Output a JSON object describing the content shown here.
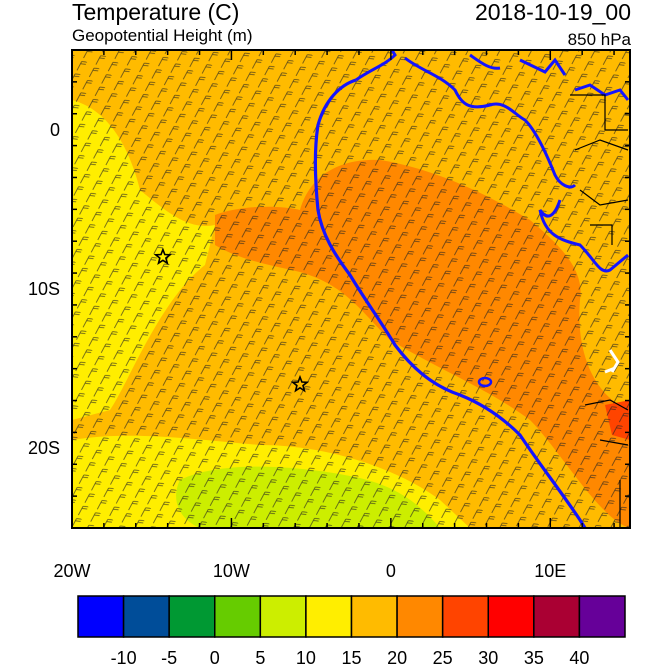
{
  "header": {
    "title": "Temperature (C)",
    "subtitle": "Geopotential Height (m)",
    "datetime": "2018-10-19_00",
    "level": "850 hPa"
  },
  "map": {
    "lon_range": [
      -20,
      15
    ],
    "lat_range": [
      -25,
      5
    ],
    "x_ticks": [
      {
        "lon": -20,
        "label": "20W"
      },
      {
        "lon": -10,
        "label": "10W"
      },
      {
        "lon": 0,
        "label": "0"
      },
      {
        "lon": 10,
        "label": "10E"
      }
    ],
    "y_ticks": [
      {
        "lat": 0,
        "label": "0"
      },
      {
        "lat": -10,
        "label": "10S"
      },
      {
        "lat": -20,
        "label": "20S"
      }
    ],
    "markers": [
      {
        "name": "star",
        "lon": -14.3,
        "lat": -8.0
      },
      {
        "name": "star",
        "lon": -5.7,
        "lat": -16.0
      }
    ],
    "wind_barbs": true,
    "coastline_color": "#1414ff"
  },
  "colorbar": {
    "labels": [
      "-10",
      "-5",
      "0",
      "5",
      "10",
      "15",
      "20",
      "25",
      "30",
      "35",
      "40"
    ],
    "colors": [
      "#0000ff",
      "#004d99",
      "#009933",
      "#66cc00",
      "#ccee00",
      "#ffee00",
      "#ffbb00",
      "#ff8800",
      "#ff4400",
      "#ff0000",
      "#aa0033",
      "#660099"
    ]
  }
}
